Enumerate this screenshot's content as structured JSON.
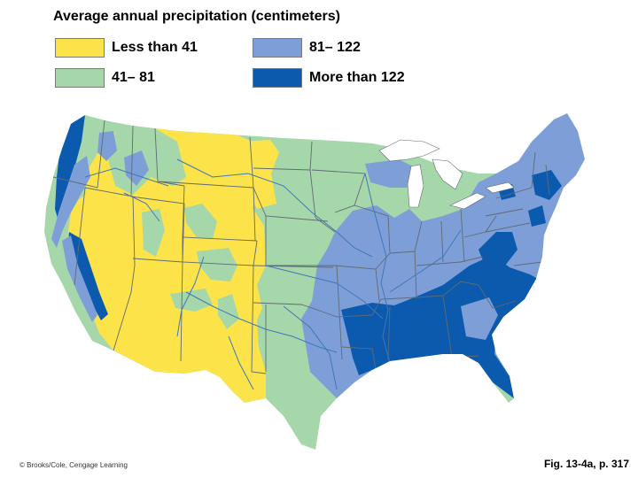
{
  "title": "Average annual precipitation (centimeters)",
  "legend": [
    {
      "label": "Less than 41",
      "color": "#FCE349"
    },
    {
      "label": "81– 122",
      "color": "#7E9ED8"
    },
    {
      "label": "41– 81",
      "color": "#A6D7AA"
    },
    {
      "label": "More than 122",
      "color": "#0B5AAE"
    }
  ],
  "colors": {
    "land_base": "#A6D7AA",
    "water": "#ffffff",
    "borders": "#5f6b72",
    "rivers": "#3f78b6"
  },
  "credit": "© Brooks/Cole, Cengage Learning",
  "figure_ref": "Fig. 13-4a, p. 317"
}
